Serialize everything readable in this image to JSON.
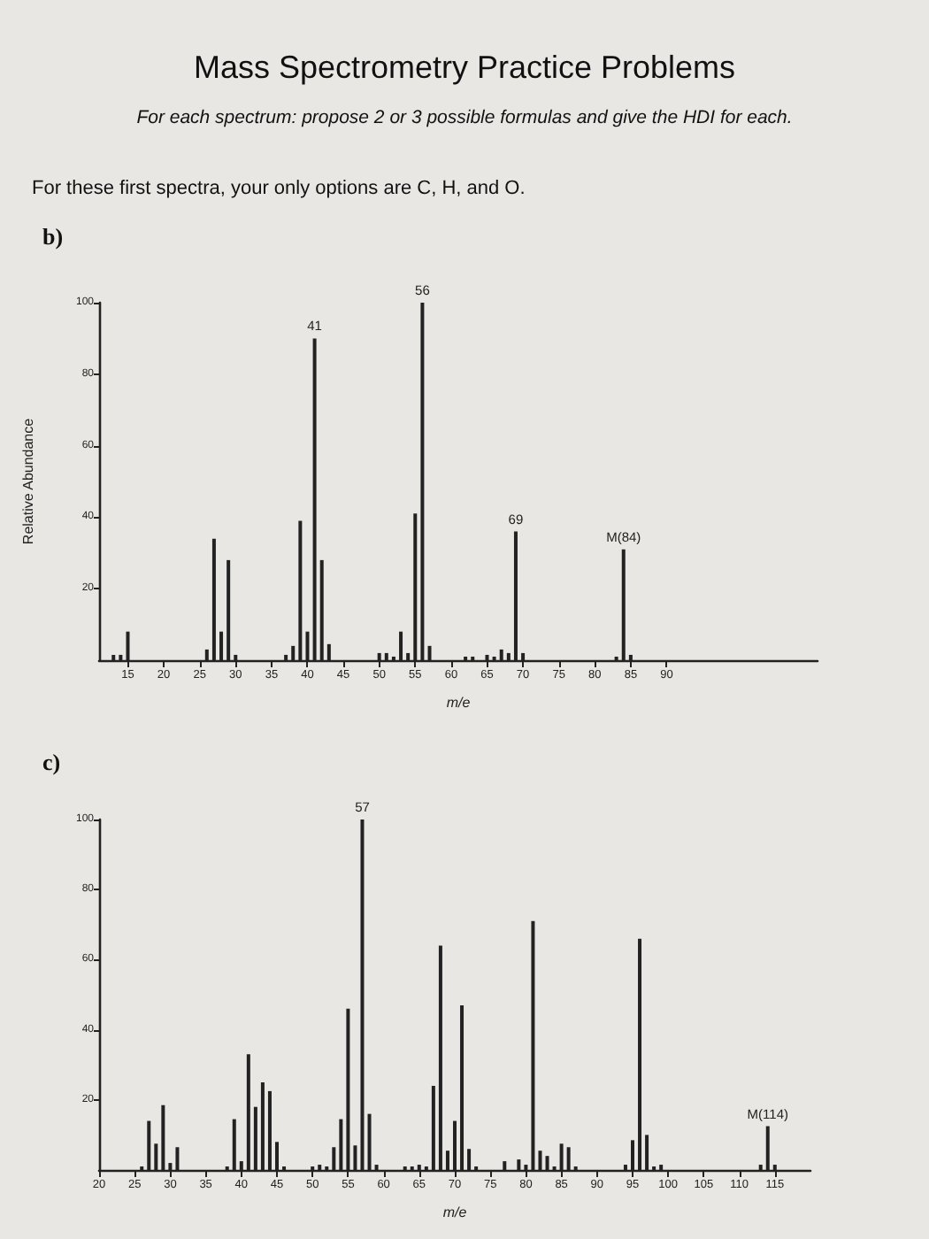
{
  "chart_data": [
    {
      "type": "bar",
      "title": "Mass Spectrometry Practice Problems",
      "subtitle": "For each spectrum: propose 2 or 3 possible formulas and give the HDI for each.",
      "xlabel": "m/e",
      "ylabel": "Relative Abundance",
      "annotations": [
        "For these first spectra, your only options are C, H, and O.",
        "b)",
        {
          "text": "41",
          "x": 41,
          "y": 90
        },
        {
          "text": "56",
          "x": 56,
          "y": 100
        },
        {
          "text": "69",
          "x": 69,
          "y": 36
        },
        {
          "text": "M(84)",
          "x": 84,
          "y": 31
        }
      ],
      "x": [
        13,
        14,
        15,
        26,
        27,
        28,
        29,
        30,
        37,
        38,
        39,
        40,
        41,
        42,
        43,
        50,
        51,
        52,
        53,
        54,
        55,
        56,
        57,
        62,
        63,
        65,
        66,
        67,
        68,
        69,
        70,
        83,
        84,
        85
      ],
      "values": [
        1.5,
        1.5,
        8,
        3,
        34,
        8,
        28,
        1.5,
        1.5,
        4,
        39,
        8,
        90,
        28,
        4.5,
        2,
        2,
        1,
        8,
        2,
        41,
        100,
        4,
        1,
        1,
        1.5,
        1,
        3,
        2,
        36,
        2,
        1,
        31,
        1.5
      ],
      "color": "#222222",
      "xlim": [
        11,
        111
      ],
      "ylim": [
        0,
        100
      ],
      "xticks": [
        15,
        20,
        25,
        30,
        35,
        40,
        45,
        50,
        55,
        60,
        65,
        70,
        75,
        80,
        85,
        90
      ],
      "yticks": [
        20,
        40,
        60,
        80,
        100
      ],
      "grid": false
    },
    {
      "type": "bar",
      "xlabel": "m/e",
      "annotations": [
        "c)",
        {
          "text": "57",
          "x": 57,
          "y": 100
        },
        {
          "text": "M(114)",
          "x": 114,
          "y": 12.5
        }
      ],
      "x": [
        26,
        27,
        28,
        29,
        30,
        31,
        38,
        39,
        40,
        41,
        42,
        43,
        44,
        45,
        46,
        50,
        51,
        52,
        53,
        54,
        55,
        56,
        57,
        58,
        59,
        63,
        64,
        65,
        66,
        67,
        68,
        69,
        70,
        71,
        72,
        73,
        77,
        79,
        80,
        81,
        82,
        83,
        84,
        85,
        86,
        87,
        94,
        95,
        96,
        97,
        98,
        99,
        113,
        114,
        115
      ],
      "values": [
        1,
        14,
        7.5,
        18.5,
        2,
        6.5,
        1,
        14.5,
        2.5,
        33,
        18,
        25,
        22.5,
        8,
        1,
        1,
        1.5,
        1,
        6.5,
        14.5,
        46,
        7,
        100,
        16,
        1.5,
        1,
        1,
        1.5,
        1,
        24,
        64,
        5.5,
        14,
        47,
        6,
        1,
        2.5,
        3,
        1.5,
        71,
        5.5,
        4,
        1,
        7.5,
        6.5,
        1,
        1.5,
        8.5,
        66,
        10,
        1,
        1.5,
        1.5,
        12.5,
        1.5
      ],
      "color": "#222222",
      "xlim": [
        20,
        120
      ],
      "ylim": [
        0,
        100
      ],
      "xticks": [
        20,
        25,
        30,
        35,
        40,
        45,
        50,
        55,
        60,
        65,
        70,
        75,
        80,
        85,
        90,
        95,
        100,
        105,
        110,
        115
      ],
      "yticks": [
        20,
        40,
        60,
        80,
        100
      ],
      "grid": false
    }
  ]
}
